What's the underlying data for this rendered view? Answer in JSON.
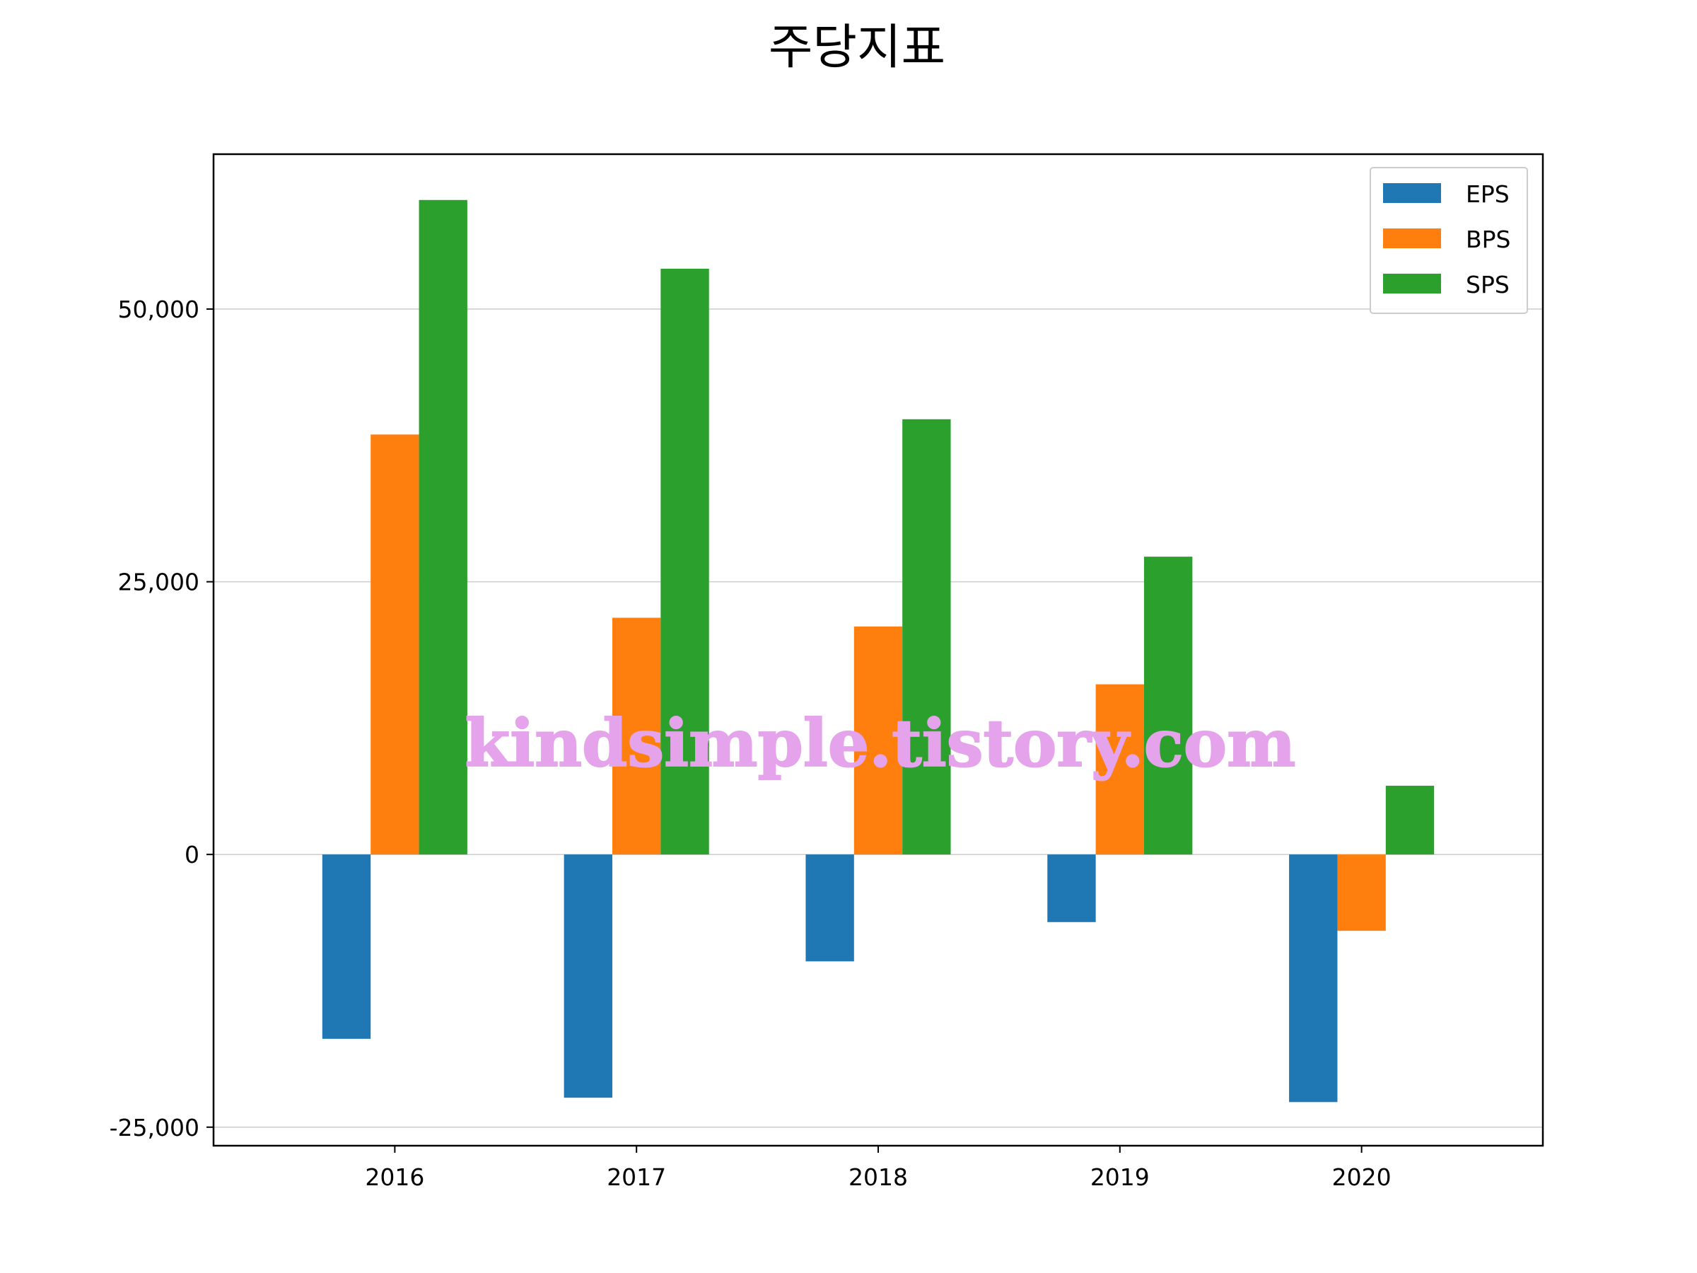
{
  "chart_data": {
    "type": "bar",
    "title": "주당지표",
    "xlabel": "",
    "ylabel": "",
    "categories": [
      "2016",
      "2017",
      "2018",
      "2019",
      "2020"
    ],
    "series": [
      {
        "name": "EPS",
        "color": "#1f77b4",
        "values": [
          -16900,
          -22300,
          -9800,
          -6200,
          -22700
        ]
      },
      {
        "name": "BPS",
        "color": "#ff7f0e",
        "values": [
          38500,
          21700,
          20900,
          15600,
          -7000
        ]
      },
      {
        "name": "SPS",
        "color": "#2ca02c",
        "values": [
          60000,
          53700,
          39900,
          27300,
          6300
        ]
      }
    ],
    "ylim": [
      -26700,
      64200
    ],
    "yticks": [
      -25000,
      0,
      25000,
      50000
    ],
    "ytick_labels": [
      "-25,000",
      "0",
      "25,000",
      "50,000"
    ],
    "grid": "horizontal",
    "legend_position": "top-right",
    "watermark": "kindsimple.tistory.com"
  }
}
